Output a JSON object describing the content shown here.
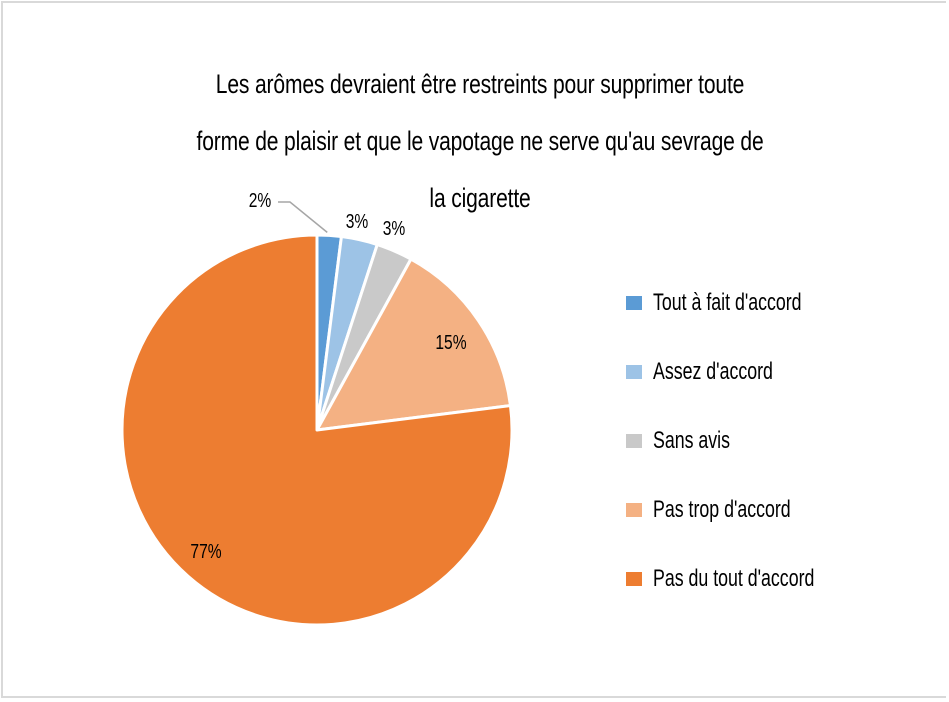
{
  "chart_data": {
    "type": "pie",
    "title": "Les arômes devraient être restreints pour supprimer toute forme de plaisir et que le vapotage ne serve qu'au sevrage de la cigarette",
    "title_lines": [
      "Les arômes devraient être restreints pour supprimer toute",
      "forme de plaisir et que le vapotage ne serve qu'au sevrage de",
      "la cigarette"
    ],
    "categories": [
      "Tout à fait d'accord",
      "Assez d'accord",
      "Sans avis",
      "Pas trop d'accord",
      "Pas du tout d'accord"
    ],
    "values": [
      2,
      3,
      3,
      15,
      77
    ],
    "data_labels": [
      "2%",
      "3%",
      "3%",
      "15%",
      "77%"
    ],
    "colors": [
      "#5b9bd5",
      "#9dc3e6",
      "#c9c9c9",
      "#f4b183",
      "#ed7d31"
    ],
    "start_angle": "12 o'clock",
    "direction": "clockwise",
    "legend_position": "right"
  }
}
